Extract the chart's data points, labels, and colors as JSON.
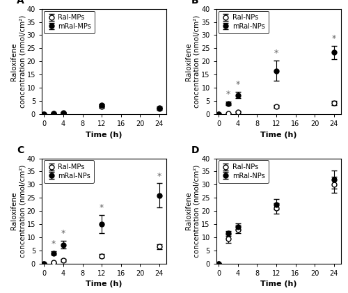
{
  "subplots": [
    {
      "label": "A",
      "legend": [
        "Ral-MPs",
        "mRal-MPs"
      ],
      "time": [
        0,
        2,
        4,
        12,
        24
      ],
      "open_y": [
        0,
        0.3,
        0.5,
        3.0,
        2.5
      ],
      "open_err": [
        0,
        0.15,
        0.2,
        0.7,
        0.5
      ],
      "filled_y": [
        0,
        0.2,
        0.3,
        3.3,
        2.0
      ],
      "filled_err": [
        0,
        0.1,
        0.15,
        0.5,
        0.3
      ],
      "star_indices": [],
      "ylim": [
        0,
        40
      ],
      "yticks": [
        0,
        5,
        10,
        15,
        20,
        25,
        30,
        35,
        40
      ]
    },
    {
      "label": "B",
      "legend": [
        "Ral-NPs",
        "mRal-NPs"
      ],
      "time": [
        0,
        2,
        4,
        12,
        24
      ],
      "open_y": [
        0,
        0.2,
        0.7,
        3.0,
        4.2
      ],
      "open_err": [
        0,
        0.1,
        0.3,
        0.5,
        0.7
      ],
      "filled_y": [
        0,
        4.0,
        7.2,
        16.5,
        23.5
      ],
      "filled_err": [
        0,
        0.7,
        1.2,
        3.8,
        2.5
      ],
      "star_indices": [
        1,
        2,
        3,
        4
      ],
      "ylim": [
        0,
        40
      ],
      "yticks": [
        0,
        5,
        10,
        15,
        20,
        25,
        30,
        35,
        40
      ]
    },
    {
      "label": "C",
      "legend": [
        "Ral-MPs",
        "mRal-NPs"
      ],
      "time": [
        0,
        2,
        4,
        12,
        24
      ],
      "open_y": [
        0,
        0.5,
        1.3,
        3.0,
        6.5
      ],
      "open_err": [
        0,
        0.2,
        0.5,
        0.6,
        1.0
      ],
      "filled_y": [
        0,
        4.0,
        7.2,
        15.0,
        26.0
      ],
      "filled_err": [
        0,
        0.7,
        1.5,
        3.5,
        4.5
      ],
      "star_indices": [
        1,
        2,
        3,
        4
      ],
      "ylim": [
        0,
        40
      ],
      "yticks": [
        0,
        5,
        10,
        15,
        20,
        25,
        30,
        35,
        40
      ]
    },
    {
      "label": "D",
      "legend": [
        "Ral-NPs",
        "mRal-NPs"
      ],
      "time": [
        0,
        2,
        4,
        12,
        24
      ],
      "open_y": [
        0,
        9.5,
        13.0,
        21.0,
        30.0
      ],
      "open_err": [
        0,
        1.5,
        1.5,
        2.0,
        3.0
      ],
      "filled_y": [
        0,
        11.5,
        14.0,
        22.5,
        32.0
      ],
      "filled_err": [
        0,
        1.0,
        1.2,
        2.0,
        3.5
      ],
      "star_indices": [],
      "ylim": [
        0,
        40
      ],
      "yticks": [
        0,
        5,
        10,
        15,
        20,
        25,
        30,
        35,
        40
      ]
    }
  ],
  "xticks": [
    0,
    4,
    8,
    12,
    16,
    20,
    24
  ],
  "xlabel": "Time (h)",
  "ylabel": "Raloxifene\nconcentration (nmol/cm²)",
  "linewidth": 1.2,
  "markersize": 5,
  "capsize": 3,
  "fontsize_label": 8,
  "fontsize_tick": 7,
  "fontsize_legend": 7,
  "fontsize_panel": 10,
  "star_fontsize": 9,
  "star_color": "#666666"
}
